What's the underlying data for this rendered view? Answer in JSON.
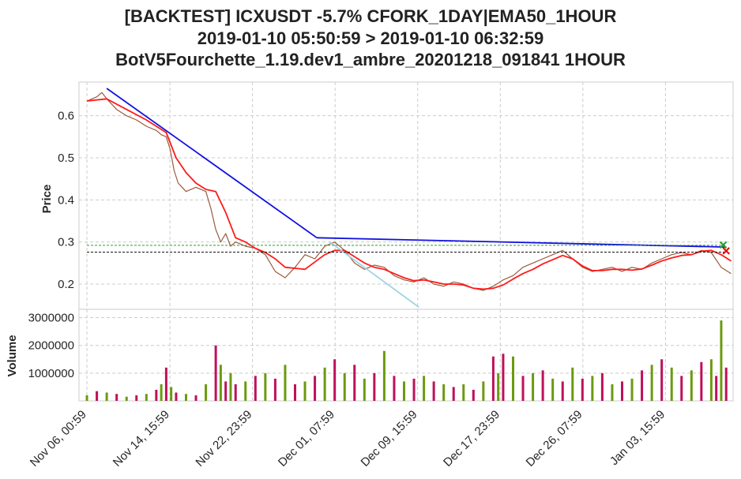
{
  "title_lines": [
    "[BACKTEST] ICXUSDT -5.7% CFORK_1DAY|EMA50_1HOUR",
    "2019-01-10 05:50:59 > 2019-01-10 06:32:59",
    "BotV5Fourchette_1.19.dev1_ambre_20201218_091841 1HOUR"
  ],
  "chart_data": [
    {
      "type": "line",
      "panel": "price",
      "ylabel": "Price",
      "ylim": [
        0.14,
        0.68
      ],
      "yticks": [
        0.2,
        0.3,
        0.4,
        0.5,
        0.6
      ],
      "ytick_labels": [
        "0.2",
        "0.3",
        "0.4",
        "0.5",
        "0.6"
      ],
      "xlim": [
        -0.8,
        65.2
      ],
      "xticks": [
        0,
        8.375,
        16.708,
        25.042,
        33.375,
        41.708,
        50.042,
        58.375
      ],
      "xtick_labels": [
        "Nov 06, 00:59",
        "Nov 14, 15:59",
        "Nov 22, 23:59",
        "Dec 01, 07:59",
        "Dec 09, 15:59",
        "Dec 17, 23:59",
        "Dec 26, 07:59",
        "Jan 03, 15:59"
      ],
      "grid": true,
      "series": [
        {
          "kind": "price",
          "color": "#9a5a3c",
          "x": [
            0,
            1,
            1.5,
            2,
            3,
            4,
            5,
            6,
            7,
            7.5,
            8,
            8.4,
            8.8,
            9.2,
            9.6,
            10,
            11,
            12,
            12.5,
            13,
            13.5,
            14,
            14.5,
            15,
            16,
            17,
            18,
            19,
            20,
            21,
            22,
            23,
            24,
            25,
            26,
            27,
            28,
            29,
            30,
            31,
            32,
            33,
            34,
            35,
            36,
            37,
            38,
            39,
            40,
            41,
            42,
            43,
            44,
            45,
            46,
            47,
            48,
            49,
            50,
            51,
            52,
            53,
            54,
            55,
            56,
            57,
            58,
            59,
            60,
            61,
            62,
            63,
            64,
            65
          ],
          "y": [
            0.635,
            0.645,
            0.655,
            0.64,
            0.615,
            0.6,
            0.59,
            0.575,
            0.565,
            0.555,
            0.55,
            0.52,
            0.47,
            0.44,
            0.43,
            0.42,
            0.43,
            0.42,
            0.38,
            0.33,
            0.3,
            0.32,
            0.29,
            0.3,
            0.29,
            0.285,
            0.27,
            0.23,
            0.215,
            0.24,
            0.27,
            0.26,
            0.29,
            0.3,
            0.28,
            0.25,
            0.235,
            0.245,
            0.24,
            0.22,
            0.21,
            0.205,
            0.215,
            0.2,
            0.195,
            0.205,
            0.2,
            0.19,
            0.185,
            0.195,
            0.21,
            0.22,
            0.24,
            0.25,
            0.26,
            0.27,
            0.28,
            0.26,
            0.24,
            0.23,
            0.235,
            0.24,
            0.23,
            0.24,
            0.235,
            0.25,
            0.26,
            0.27,
            0.275,
            0.27,
            0.28,
            0.275,
            0.24,
            0.225
          ]
        },
        {
          "kind": "ema50",
          "color": "#ff1a1a",
          "x": [
            0,
            2,
            4,
            6,
            8,
            9,
            10,
            11,
            12,
            13,
            14,
            15,
            16,
            17,
            18,
            19,
            20,
            22,
            24,
            25,
            26,
            27,
            28,
            29,
            30,
            31,
            32,
            33,
            34,
            35,
            36,
            37,
            38,
            39,
            40,
            41,
            42,
            43,
            44,
            45,
            46,
            47,
            48,
            49,
            50,
            51,
            52,
            53,
            54,
            55,
            56,
            57,
            58,
            59,
            60,
            61,
            62,
            63,
            64,
            65
          ],
          "y": [
            0.635,
            0.64,
            0.615,
            0.59,
            0.56,
            0.5,
            0.465,
            0.44,
            0.425,
            0.42,
            0.37,
            0.31,
            0.3,
            0.285,
            0.275,
            0.26,
            0.24,
            0.235,
            0.27,
            0.28,
            0.28,
            0.265,
            0.25,
            0.24,
            0.235,
            0.225,
            0.215,
            0.208,
            0.21,
            0.205,
            0.2,
            0.2,
            0.198,
            0.19,
            0.188,
            0.19,
            0.198,
            0.212,
            0.225,
            0.235,
            0.248,
            0.258,
            0.268,
            0.26,
            0.243,
            0.232,
            0.232,
            0.235,
            0.235,
            0.233,
            0.236,
            0.245,
            0.255,
            0.262,
            0.268,
            0.27,
            0.278,
            0.28,
            0.27,
            0.255
          ]
        },
        {
          "kind": "trend-down",
          "color": "#1010e0",
          "x": [
            2,
            23.2
          ],
          "y": [
            0.665,
            0.31
          ]
        },
        {
          "kind": "trend-flat",
          "color": "#1010e0",
          "x": [
            23.2,
            64.5
          ],
          "y": [
            0.31,
            0.288
          ]
        },
        {
          "kind": "trend-light",
          "color": "#9fd4e4",
          "x": [
            24.5,
            33.5
          ],
          "y": [
            0.3,
            0.145
          ]
        },
        {
          "kind": "level-green",
          "color": "#2aa02a",
          "x": [
            0,
            64.5
          ],
          "y": [
            0.292,
            0.292
          ]
        },
        {
          "kind": "level-black",
          "color": "#111111",
          "x": [
            0,
            64.5
          ],
          "y": [
            0.276,
            0.276
          ]
        }
      ],
      "markers": [
        {
          "kind": "buy",
          "color": "#2aa02a",
          "x": 64.2,
          "y": 0.293
        },
        {
          "kind": "sell",
          "color": "#e01010",
          "x": 64.5,
          "y": 0.279
        }
      ]
    },
    {
      "type": "bar",
      "panel": "volume",
      "ylabel": "Volume",
      "ylim": [
        0,
        3300000
      ],
      "yticks": [
        1000000,
        2000000,
        3000000
      ],
      "ytick_labels": [
        "1000000",
        "2000000",
        "3000000"
      ],
      "colors": [
        "#6b9a10",
        "#c0105a"
      ],
      "x": [
        0,
        1,
        2,
        3,
        4,
        5,
        6,
        7,
        7.5,
        8,
        8.5,
        9,
        10,
        11,
        12,
        13,
        13.5,
        14,
        14.5,
        15,
        16,
        17,
        18,
        19,
        20,
        21,
        22,
        23,
        24,
        25,
        26,
        27,
        28,
        29,
        30,
        31,
        32,
        33,
        34,
        35,
        36,
        37,
        38,
        39,
        40,
        41,
        41.5,
        42,
        43,
        44,
        45,
        46,
        47,
        48,
        49,
        50,
        51,
        52,
        53,
        54,
        55,
        56,
        57,
        58,
        59,
        60,
        61,
        62,
        63,
        63.5,
        64,
        64.5
      ],
      "values": [
        200000,
        350000,
        300000,
        250000,
        150000,
        200000,
        250000,
        400000,
        600000,
        1200000,
        500000,
        300000,
        250000,
        200000,
        600000,
        2000000,
        1300000,
        700000,
        1000000,
        600000,
        700000,
        900000,
        1000000,
        800000,
        1300000,
        600000,
        700000,
        900000,
        1200000,
        1500000,
        1000000,
        1300000,
        800000,
        1000000,
        1800000,
        900000,
        700000,
        800000,
        900000,
        700000,
        600000,
        500000,
        600000,
        400000,
        700000,
        1600000,
        1000000,
        1700000,
        1600000,
        900000,
        1000000,
        1100000,
        800000,
        700000,
        1200000,
        800000,
        900000,
        1000000,
        600000,
        700000,
        800000,
        1100000,
        1300000,
        1500000,
        1200000,
        900000,
        1100000,
        1400000,
        1500000,
        900000,
        2900000,
        1200000
      ]
    }
  ]
}
